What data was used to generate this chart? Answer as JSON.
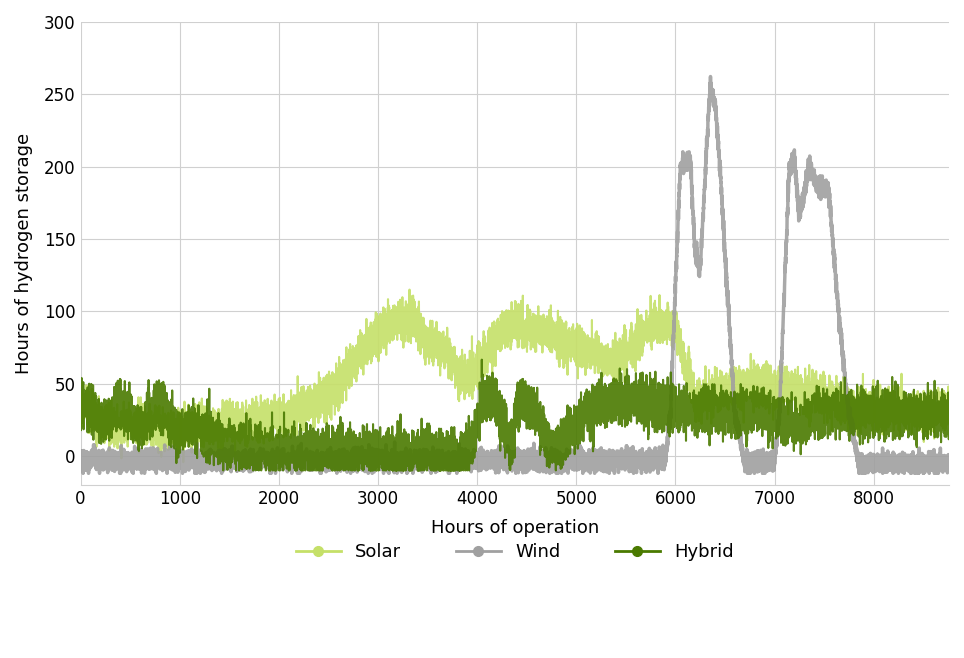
{
  "xlabel": "Hours of operation",
  "ylabel": "Hours of hydrogen storage",
  "xlim": [
    0,
    8760
  ],
  "ylim": [
    -20,
    300
  ],
  "yticks": [
    0,
    50,
    100,
    150,
    200,
    250,
    300
  ],
  "xticks": [
    0,
    1000,
    2000,
    3000,
    4000,
    5000,
    6000,
    7000,
    8000
  ],
  "solar_color": "#c5e068",
  "wind_color": "#a0a0a0",
  "hybrid_color": "#4a7a00",
  "legend_labels": [
    "Solar",
    "Wind",
    "Hybrid"
  ],
  "background_color": "#ffffff",
  "grid_color": "#d0d0d0"
}
